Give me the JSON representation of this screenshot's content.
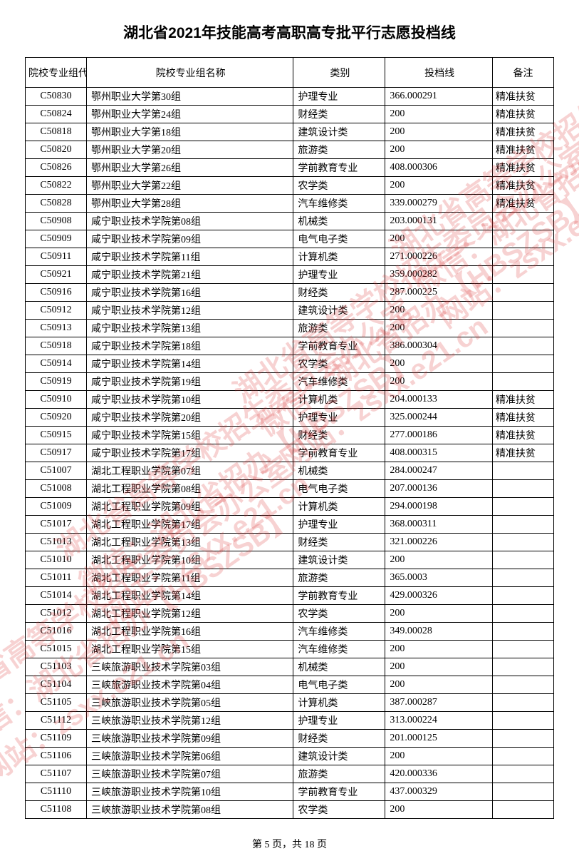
{
  "title": "湖北省2021年技能高考高职高专批平行志愿投档线",
  "columns": {
    "code": "院校专业组代号",
    "name": "院校专业组名称",
    "category": "类别",
    "score": "投档线",
    "note": "备注"
  },
  "rows": [
    {
      "code": "C50830",
      "name": "鄂州职业大学第30组",
      "cat": "护理专业",
      "score": "366.000291",
      "note": "精准扶贫"
    },
    {
      "code": "C50824",
      "name": "鄂州职业大学第24组",
      "cat": "财经类",
      "score": "200",
      "note": "精准扶贫"
    },
    {
      "code": "C50818",
      "name": "鄂州职业大学第18组",
      "cat": "建筑设计类",
      "score": "200",
      "note": "精准扶贫"
    },
    {
      "code": "C50820",
      "name": "鄂州职业大学第20组",
      "cat": "旅游类",
      "score": "200",
      "note": "精准扶贫"
    },
    {
      "code": "C50826",
      "name": "鄂州职业大学第26组",
      "cat": "学前教育专业",
      "score": "408.000306",
      "note": "精准扶贫"
    },
    {
      "code": "C50822",
      "name": "鄂州职业大学第22组",
      "cat": "农学类",
      "score": "200",
      "note": "精准扶贫"
    },
    {
      "code": "C50828",
      "name": "鄂州职业大学第28组",
      "cat": "汽车维修类",
      "score": "339.000279",
      "note": "精准扶贫"
    },
    {
      "code": "C50908",
      "name": "咸宁职业技术学院第08组",
      "cat": "机械类",
      "score": "203.000131",
      "note": ""
    },
    {
      "code": "C50909",
      "name": "咸宁职业技术学院第09组",
      "cat": "电气电子类",
      "score": "200",
      "note": ""
    },
    {
      "code": "C50911",
      "name": "咸宁职业技术学院第11组",
      "cat": "计算机类",
      "score": "271.000226",
      "note": ""
    },
    {
      "code": "C50921",
      "name": "咸宁职业技术学院第21组",
      "cat": "护理专业",
      "score": "359.000282",
      "note": ""
    },
    {
      "code": "C50916",
      "name": "咸宁职业技术学院第16组",
      "cat": "财经类",
      "score": "287.000225",
      "note": ""
    },
    {
      "code": "C50912",
      "name": "咸宁职业技术学院第12组",
      "cat": "建筑设计类",
      "score": "200",
      "note": ""
    },
    {
      "code": "C50913",
      "name": "咸宁职业技术学院第13组",
      "cat": "旅游类",
      "score": "200",
      "note": ""
    },
    {
      "code": "C50918",
      "name": "咸宁职业技术学院第18组",
      "cat": "学前教育专业",
      "score": "386.000304",
      "note": ""
    },
    {
      "code": "C50914",
      "name": "咸宁职业技术学院第14组",
      "cat": "农学类",
      "score": "200",
      "note": ""
    },
    {
      "code": "C50919",
      "name": "咸宁职业技术学院第19组",
      "cat": "汽车维修类",
      "score": "200",
      "note": ""
    },
    {
      "code": "C50910",
      "name": "咸宁职业技术学院第10组",
      "cat": "计算机类",
      "score": "204.000133",
      "note": "精准扶贫"
    },
    {
      "code": "C50920",
      "name": "咸宁职业技术学院第20组",
      "cat": "护理专业",
      "score": "325.000244",
      "note": "精准扶贫"
    },
    {
      "code": "C50915",
      "name": "咸宁职业技术学院第15组",
      "cat": "财经类",
      "score": "277.000186",
      "note": "精准扶贫"
    },
    {
      "code": "C50917",
      "name": "咸宁职业技术学院第17组",
      "cat": "学前教育专业",
      "score": "408.000315",
      "note": "精准扶贫"
    },
    {
      "code": "C51007",
      "name": "湖北工程职业学院第07组",
      "cat": "机械类",
      "score": "284.000247",
      "note": ""
    },
    {
      "code": "C51008",
      "name": "湖北工程职业学院第08组",
      "cat": "电气电子类",
      "score": "207.000136",
      "note": ""
    },
    {
      "code": "C51009",
      "name": "湖北工程职业学院第09组",
      "cat": "计算机类",
      "score": "294.000198",
      "note": ""
    },
    {
      "code": "C51017",
      "name": "湖北工程职业学院第17组",
      "cat": "护理专业",
      "score": "368.000311",
      "note": ""
    },
    {
      "code": "C51013",
      "name": "湖北工程职业学院第13组",
      "cat": "财经类",
      "score": "321.000226",
      "note": ""
    },
    {
      "code": "C51010",
      "name": "湖北工程职业学院第10组",
      "cat": "建筑设计类",
      "score": "200",
      "note": ""
    },
    {
      "code": "C51011",
      "name": "湖北工程职业学院第11组",
      "cat": "旅游类",
      "score": "365.0003",
      "note": ""
    },
    {
      "code": "C51014",
      "name": "湖北工程职业学院第14组",
      "cat": "学前教育专业",
      "score": "429.000326",
      "note": ""
    },
    {
      "code": "C51012",
      "name": "湖北工程职业学院第12组",
      "cat": "农学类",
      "score": "200",
      "note": ""
    },
    {
      "code": "C51016",
      "name": "湖北工程职业学院第16组",
      "cat": "汽车维修类",
      "score": "349.00028",
      "note": ""
    },
    {
      "code": "C51015",
      "name": "湖北工程职业学院第15组",
      "cat": "汽车维修类",
      "score": "200",
      "note": ""
    },
    {
      "code": "C51103",
      "name": "三峡旅游职业技术学院第03组",
      "cat": "机械类",
      "score": "200",
      "note": ""
    },
    {
      "code": "C51104",
      "name": "三峡旅游职业技术学院第04组",
      "cat": "电气电子类",
      "score": "200",
      "note": ""
    },
    {
      "code": "C51105",
      "name": "三峡旅游职业技术学院第05组",
      "cat": "计算机类",
      "score": "387.000287",
      "note": ""
    },
    {
      "code": "C51112",
      "name": "三峡旅游职业技术学院第12组",
      "cat": "护理专业",
      "score": "313.000224",
      "note": ""
    },
    {
      "code": "C51109",
      "name": "三峡旅游职业技术学院第09组",
      "cat": "财经类",
      "score": "201.000125",
      "note": ""
    },
    {
      "code": "C51106",
      "name": "三峡旅游职业技术学院第06组",
      "cat": "建筑设计类",
      "score": "200",
      "note": ""
    },
    {
      "code": "C51107",
      "name": "三峡旅游职业技术学院第07组",
      "cat": "旅游类",
      "score": "420.000336",
      "note": ""
    },
    {
      "code": "C51110",
      "name": "三峡旅游职业技术学院第10组",
      "cat": "学前教育专业",
      "score": "437.000329",
      "note": ""
    },
    {
      "code": "C51108",
      "name": "三峡旅游职业技术学院第08组",
      "cat": "农学类",
      "score": "200",
      "note": ""
    }
  ],
  "footer": {
    "prefix": "第 ",
    "page": "5",
    "mid": " 页，共 ",
    "total": "18",
    "suffix": " 页"
  },
  "watermark": {
    "line1": "湖北省高等学校招生委员会办公室",
    "line2": "微信：湖北省招办【HBSZSB】",
    "line3": "网站：zsxx.e21.cn"
  }
}
